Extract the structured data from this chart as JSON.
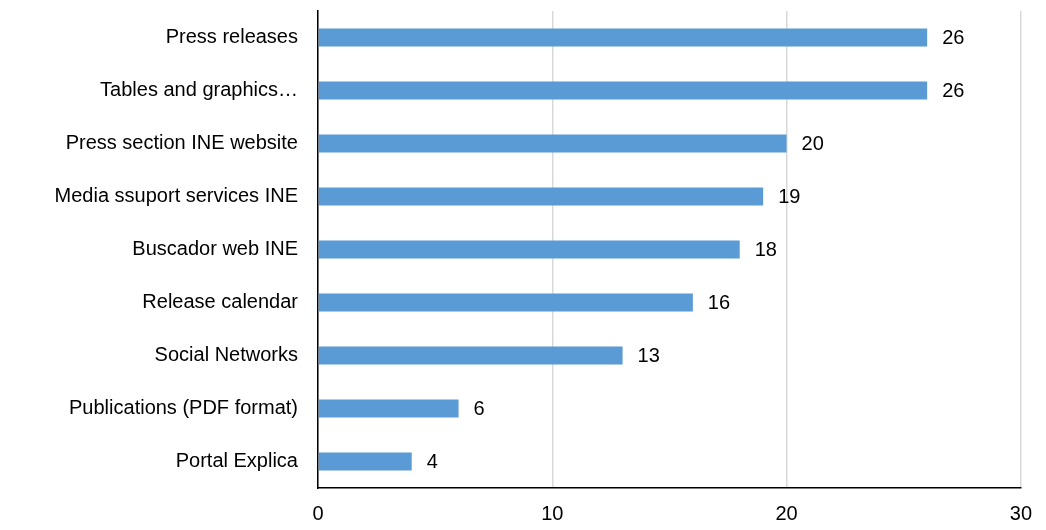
{
  "chart_data": {
    "type": "bar",
    "orientation": "horizontal",
    "categories": [
      "Press releases",
      "Tables and graphics…",
      "Press section INE website",
      "Media ssuport services INE",
      "Buscador web INE",
      "Release calendar",
      "Social Networks",
      "Publications (PDF format)",
      "Portal Explica"
    ],
    "values": [
      26,
      26,
      20,
      19,
      18,
      16,
      13,
      6,
      4
    ],
    "color": "#5b9bd5",
    "xlim": [
      0,
      30
    ],
    "xticks": [
      0,
      10,
      20,
      30
    ],
    "grid": "x",
    "data_labels": true
  }
}
